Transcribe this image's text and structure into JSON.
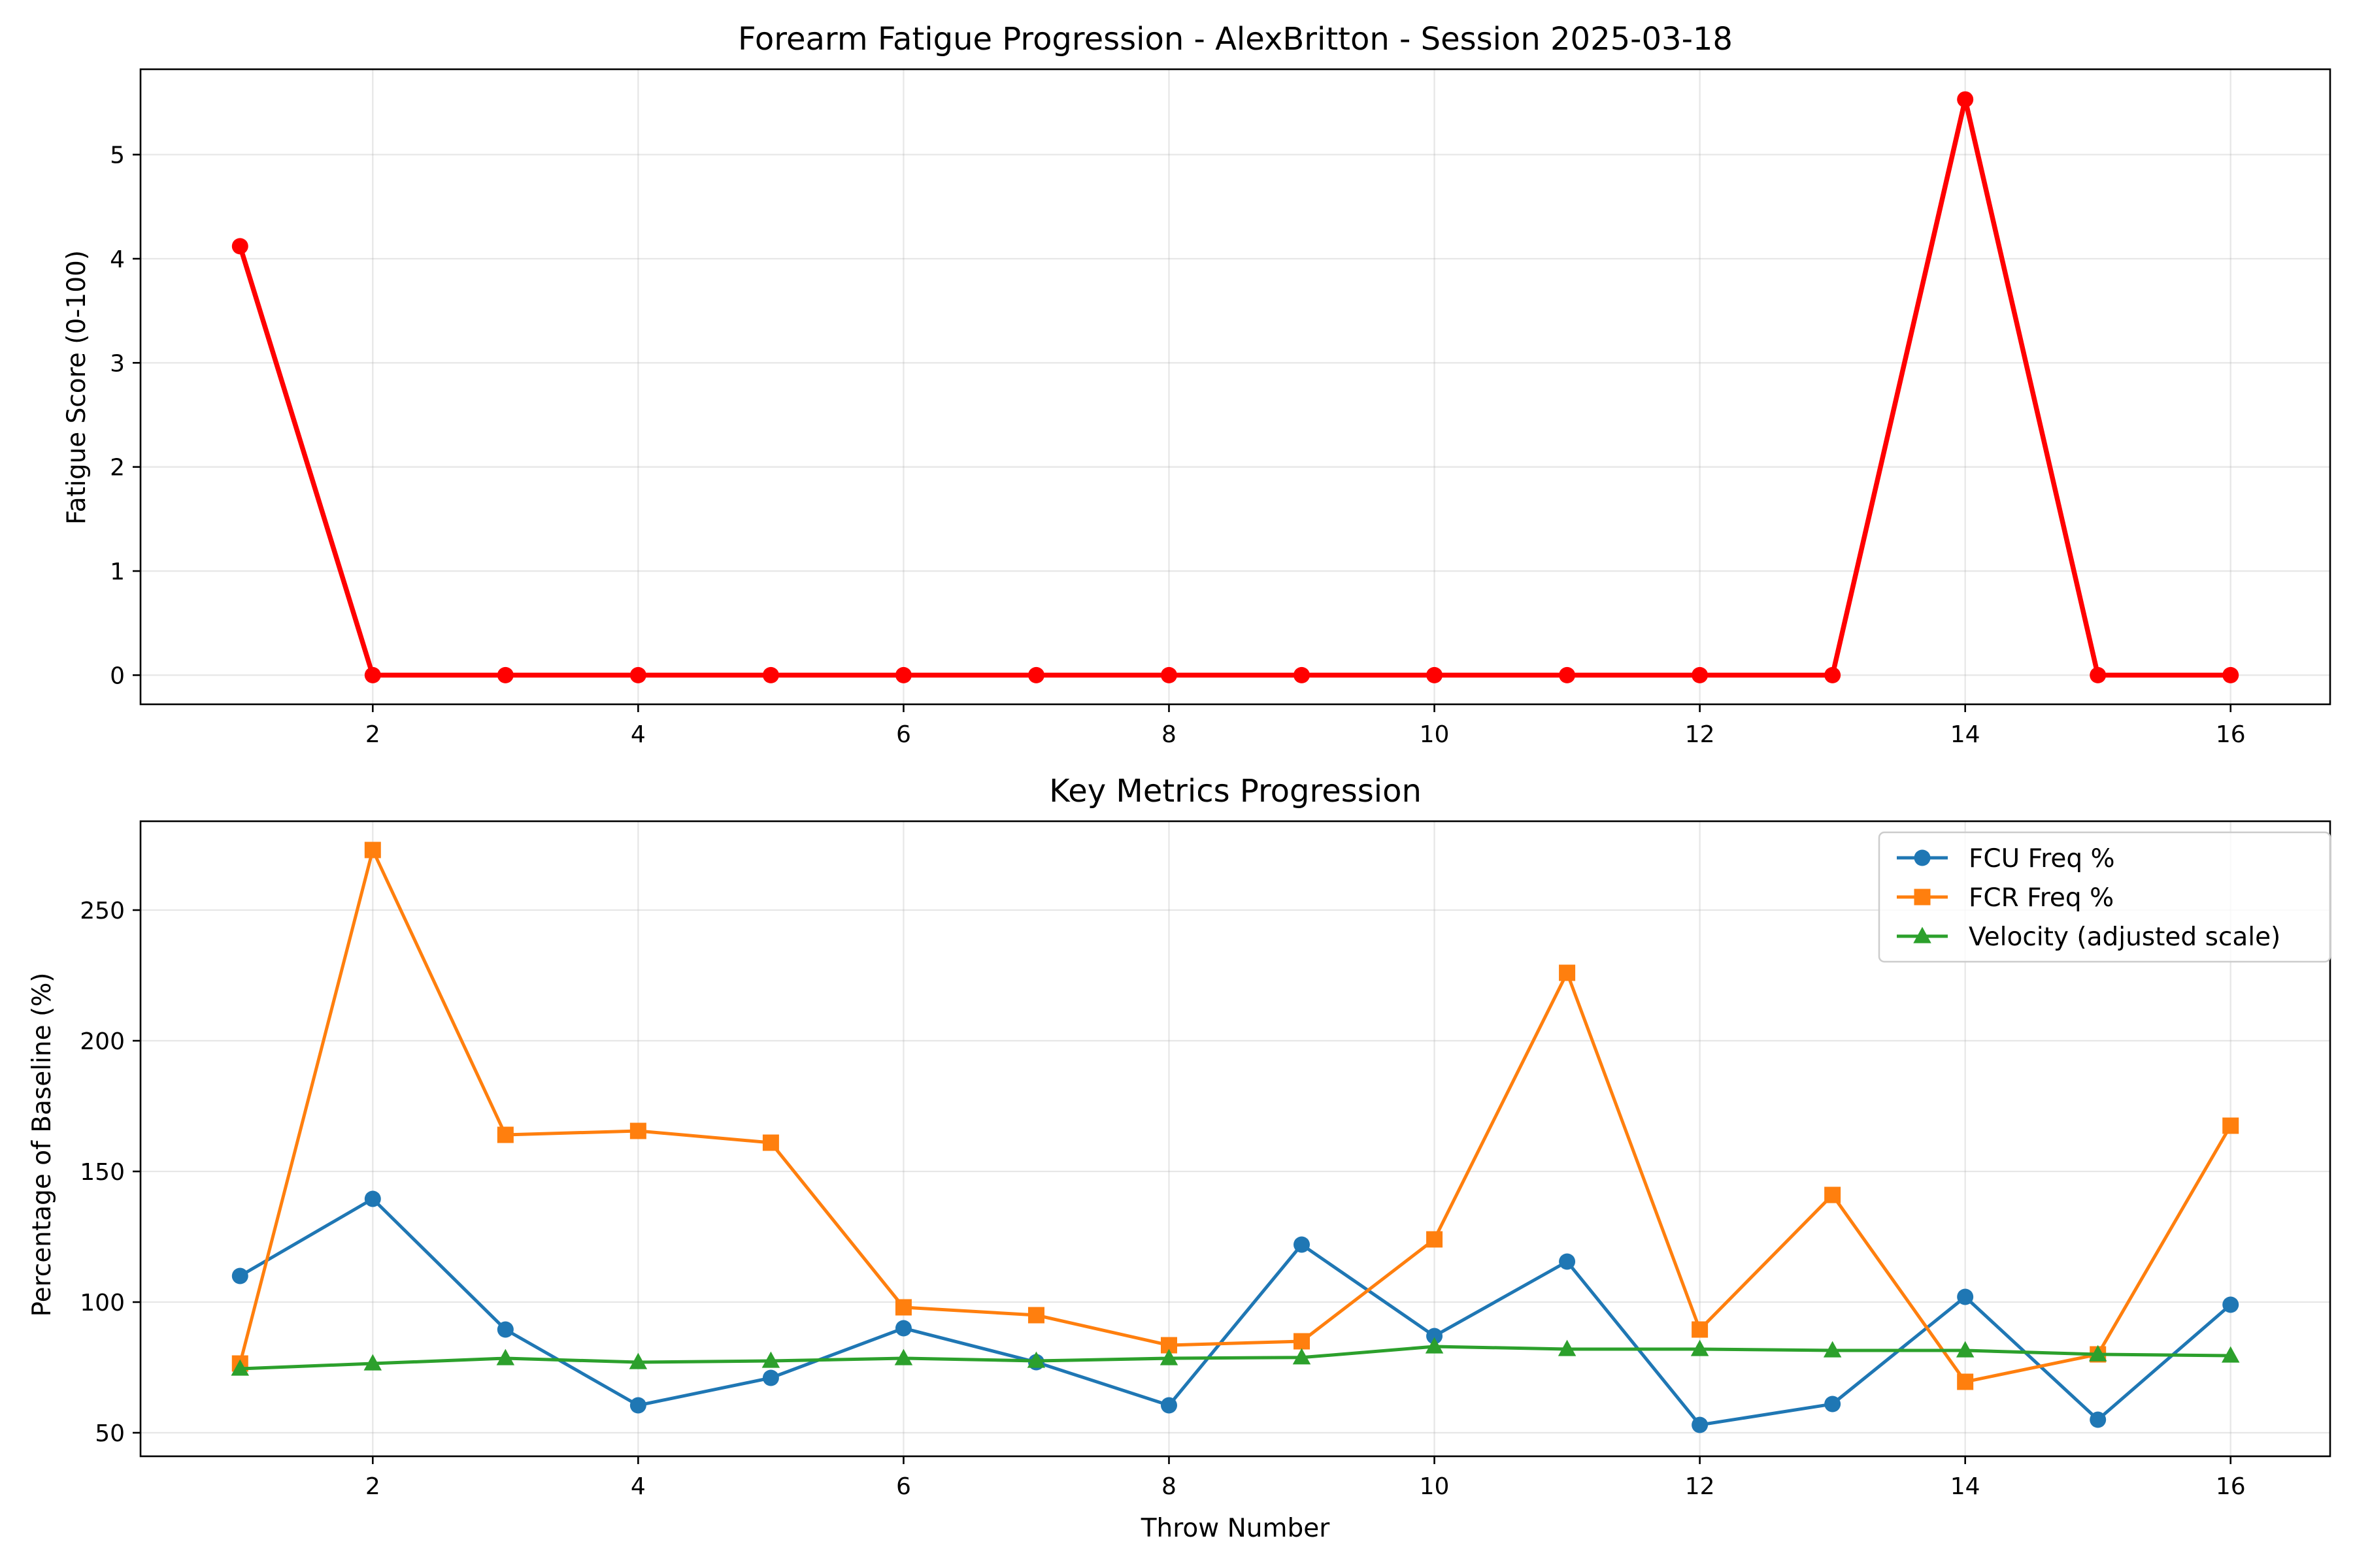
{
  "chart_data": [
    {
      "type": "line",
      "title": "Forearm Fatigue Progression - AlexBritton - Session 2025-03-18",
      "xlabel": "",
      "ylabel": "Fatigue Score (0-100)",
      "xlim": [
        0.25,
        16.75
      ],
      "ylim": [
        -0.28,
        5.82
      ],
      "xticks": [
        2,
        4,
        6,
        8,
        10,
        12,
        14,
        16
      ],
      "yticks": [
        0,
        1,
        2,
        3,
        4,
        5
      ],
      "grid": true,
      "series": [
        {
          "color": "#ff0000",
          "marker": "circle",
          "x": [
            1,
            2,
            3,
            4,
            5,
            6,
            7,
            8,
            9,
            10,
            11,
            12,
            13,
            14,
            15,
            16
          ],
          "values": [
            4.12,
            0,
            0,
            0,
            0,
            0,
            0,
            0,
            0,
            0,
            0,
            0,
            0,
            5.53,
            0,
            0
          ]
        }
      ]
    },
    {
      "type": "line",
      "title": "Key Metrics Progression",
      "xlabel": "Throw Number",
      "ylabel": "Percentage of Baseline (%)",
      "xlim": [
        0.25,
        16.75
      ],
      "ylim": [
        41,
        284
      ],
      "xticks": [
        2,
        4,
        6,
        8,
        10,
        12,
        14,
        16
      ],
      "yticks": [
        50,
        100,
        150,
        200,
        250
      ],
      "grid": true,
      "legend": "top-right",
      "series": [
        {
          "name": "FCU Freq %",
          "color": "#1f77b4",
          "marker": "circle",
          "x": [
            1,
            2,
            3,
            4,
            5,
            6,
            7,
            8,
            9,
            10,
            11,
            12,
            13,
            14,
            15,
            16
          ],
          "values": [
            110,
            139.5,
            89.5,
            60.5,
            71,
            90,
            77,
            60.5,
            122,
            87,
            115.5,
            53,
            61,
            102,
            55,
            99
          ]
        },
        {
          "name": "FCR Freq %",
          "color": "#ff7f0e",
          "marker": "square",
          "x": [
            1,
            2,
            3,
            4,
            5,
            6,
            7,
            8,
            9,
            10,
            11,
            12,
            13,
            14,
            15,
            16
          ],
          "values": [
            76.5,
            273,
            164,
            165.5,
            161,
            98,
            95,
            83.5,
            85,
            124,
            226,
            89.5,
            141,
            69.5,
            80,
            167.5
          ]
        },
        {
          "name": "Velocity (adjusted scale)",
          "color": "#2ca02c",
          "marker": "triangle",
          "x": [
            1,
            2,
            3,
            4,
            5,
            6,
            7,
            8,
            9,
            10,
            11,
            12,
            13,
            14,
            15,
            16
          ],
          "values": [
            74.5,
            76.5,
            78.5,
            77,
            77.5,
            78.5,
            77.5,
            78.5,
            78.8,
            83,
            82,
            82,
            81.5,
            81.5,
            80,
            79.5
          ]
        }
      ]
    }
  ]
}
